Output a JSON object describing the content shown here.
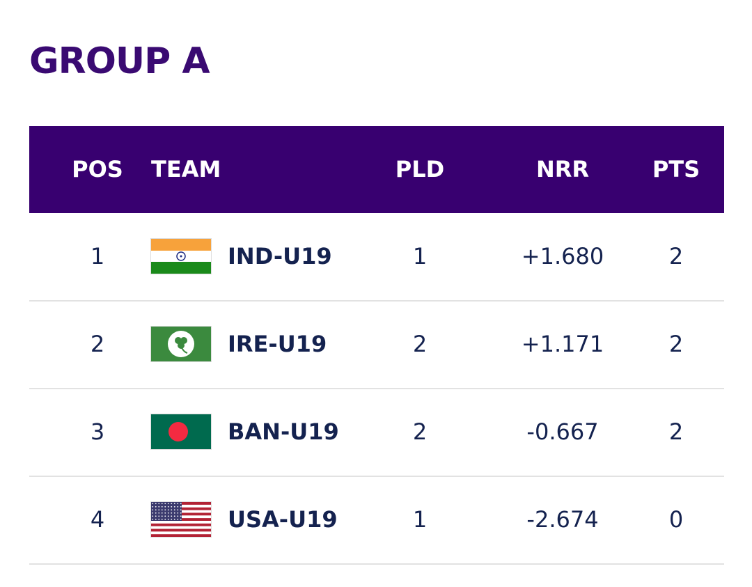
{
  "header": {
    "title": "GROUP A"
  },
  "table": {
    "columns": [
      "POS",
      "TEAM",
      "PLD",
      "NRR",
      "PTS"
    ],
    "rows": [
      [
        "1",
        "IND-U19",
        "1",
        "+1.680",
        "2"
      ],
      [
        "2",
        "IRE-U19",
        "2",
        "+1.171",
        "2"
      ],
      [
        "3",
        "BAN-U19",
        "2",
        "-0.667",
        "2"
      ],
      [
        "4",
        "USA-U19",
        "1",
        "-2.674",
        "0"
      ]
    ]
  }
}
